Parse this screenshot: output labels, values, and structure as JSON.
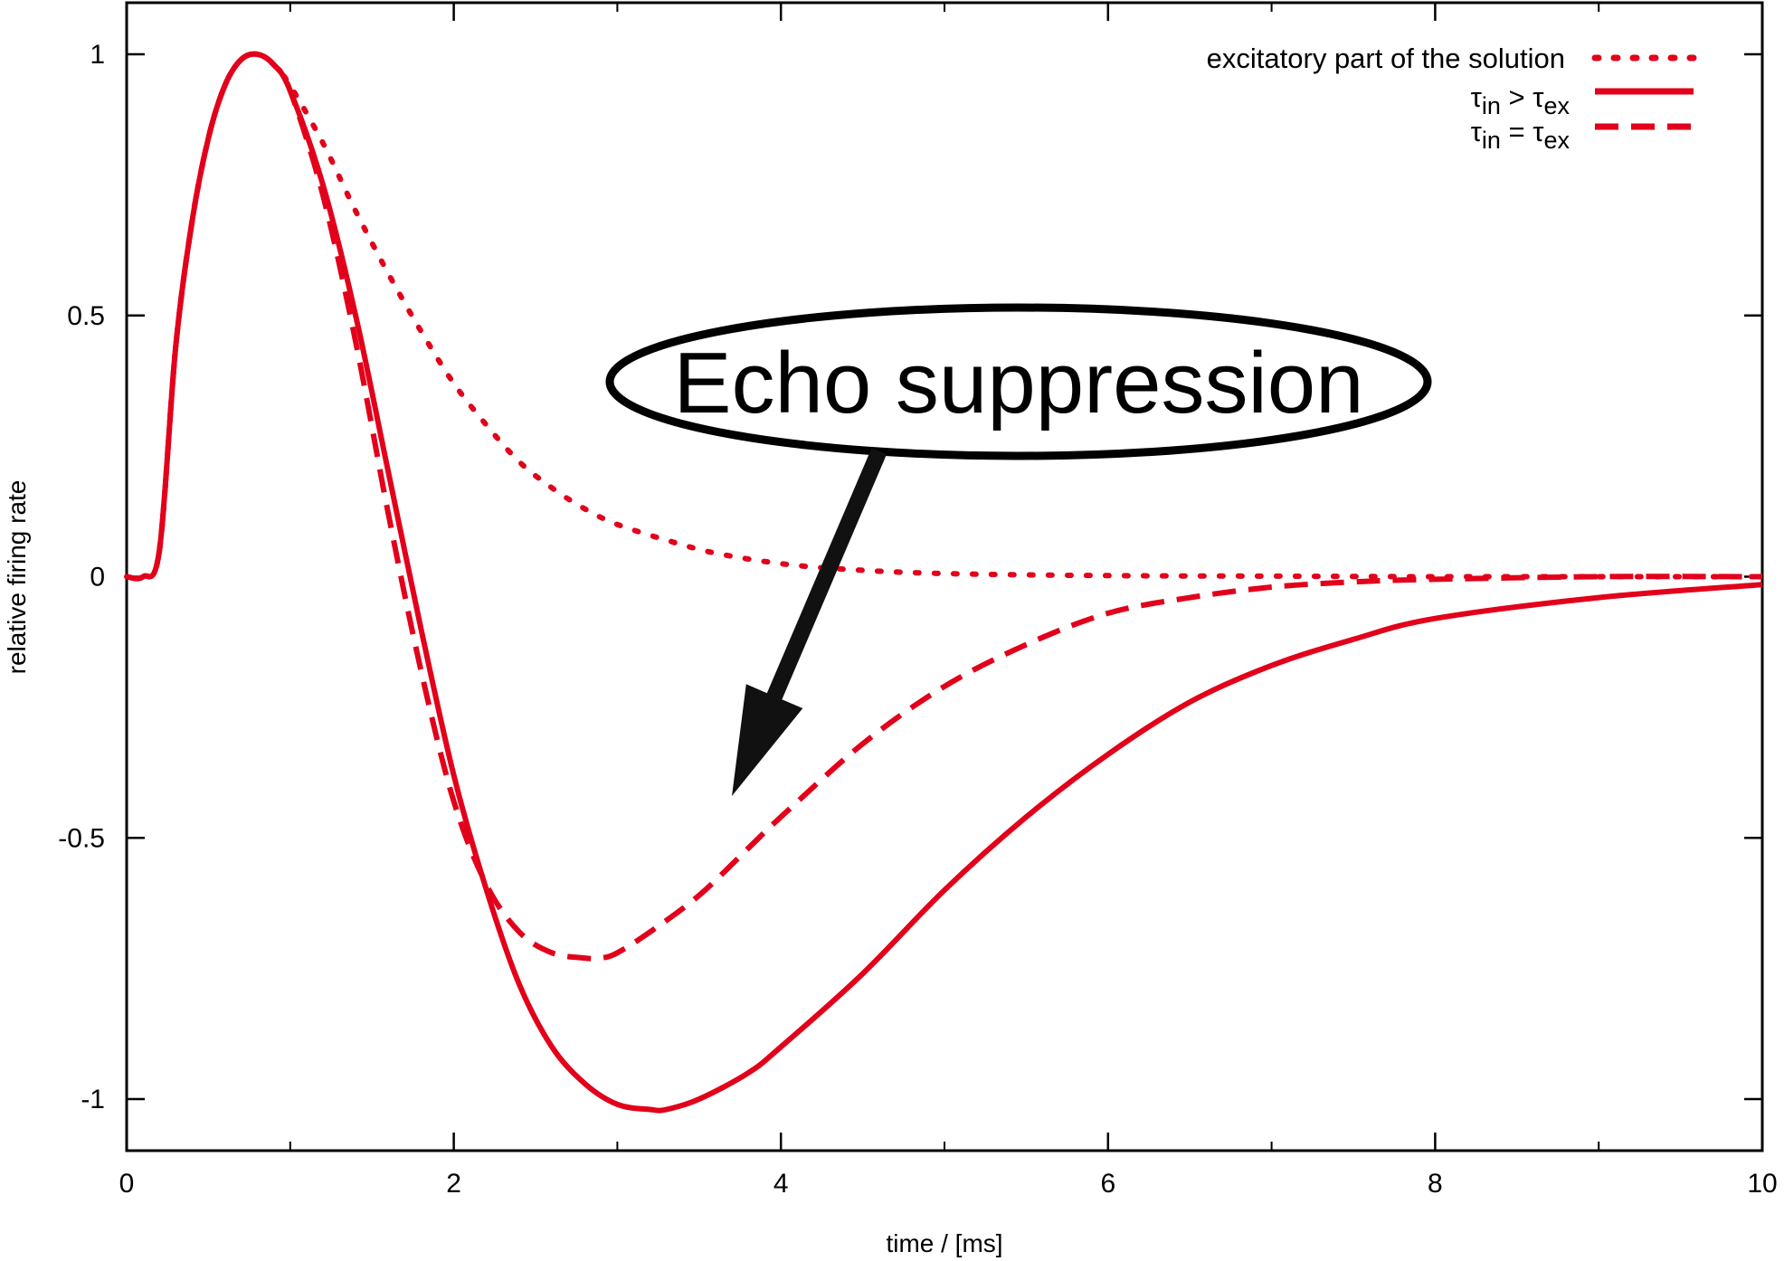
{
  "chart_data": {
    "type": "line",
    "title": "",
    "xlabel": "time / [ms]",
    "ylabel": "relative firing rate",
    "xlim": [
      0,
      10
    ],
    "ylim": [
      -1.1,
      1.0
    ],
    "xticks": [
      0,
      2,
      4,
      6,
      8,
      10
    ],
    "xtick_labels": [
      "0",
      "2",
      "4",
      "6",
      "8",
      "10"
    ],
    "yticks": [
      -1,
      -0.5,
      0,
      0.5,
      1
    ],
    "ytick_labels": [
      "-1",
      "-0.5",
      "0",
      "0.5",
      "1"
    ],
    "grid": false,
    "legend_position": "top-right",
    "color": "#e2001a",
    "series": [
      {
        "name": "excitatory part of the solution",
        "style": "dotted",
        "x": [
          0,
          0.1,
          0.2,
          0.3,
          0.4,
          0.5,
          0.6,
          0.7,
          0.8,
          0.9,
          1.0,
          1.2,
          1.4,
          1.6,
          1.8,
          2.0,
          2.2,
          2.4,
          2.6,
          2.8,
          3.0,
          3.3,
          3.6,
          4.0,
          4.4,
          5.0,
          6.0,
          7.0,
          8.0,
          9.0,
          10.0
        ],
        "y": [
          0,
          0,
          0.05,
          0.44,
          0.68,
          0.84,
          0.94,
          0.99,
          1.0,
          0.98,
          0.94,
          0.83,
          0.7,
          0.58,
          0.47,
          0.37,
          0.29,
          0.22,
          0.17,
          0.13,
          0.1,
          0.07,
          0.045,
          0.025,
          0.014,
          0.006,
          0.002,
          0.001,
          0.0,
          0.0,
          0.0
        ]
      },
      {
        "name": "τin > τex",
        "style": "solid",
        "x": [
          0,
          0.1,
          0.2,
          0.3,
          0.4,
          0.5,
          0.6,
          0.7,
          0.8,
          0.9,
          1.0,
          1.2,
          1.4,
          1.6,
          1.8,
          2.0,
          2.2,
          2.4,
          2.6,
          2.8,
          3.0,
          3.2,
          3.3,
          3.5,
          3.8,
          4.0,
          4.5,
          5.0,
          5.5,
          6.0,
          6.5,
          7.0,
          7.5,
          8.0,
          9.0,
          10.0
        ],
        "y": [
          0,
          0,
          0.05,
          0.44,
          0.68,
          0.84,
          0.94,
          0.99,
          1.0,
          0.98,
          0.93,
          0.75,
          0.5,
          0.2,
          -0.1,
          -0.38,
          -0.6,
          -0.78,
          -0.9,
          -0.97,
          -1.01,
          -1.02,
          -1.02,
          -1.0,
          -0.95,
          -0.9,
          -0.76,
          -0.6,
          -0.46,
          -0.34,
          -0.24,
          -0.17,
          -0.12,
          -0.08,
          -0.04,
          -0.015
        ]
      },
      {
        "name": "τin = τex",
        "style": "dashed",
        "x": [
          0,
          0.1,
          0.2,
          0.3,
          0.4,
          0.5,
          0.6,
          0.7,
          0.8,
          0.9,
          1.0,
          1.2,
          1.4,
          1.6,
          1.8,
          2.0,
          2.2,
          2.4,
          2.6,
          2.8,
          2.9,
          3.0,
          3.2,
          3.5,
          3.8,
          4.0,
          4.5,
          5.0,
          5.5,
          6.0,
          6.5,
          7.0,
          7.5,
          8.0,
          9.0,
          10.0
        ],
        "y": [
          0,
          0,
          0.05,
          0.44,
          0.68,
          0.84,
          0.94,
          0.99,
          1.0,
          0.98,
          0.93,
          0.73,
          0.45,
          0.12,
          -0.18,
          -0.43,
          -0.59,
          -0.68,
          -0.72,
          -0.73,
          -0.73,
          -0.72,
          -0.68,
          -0.61,
          -0.52,
          -0.46,
          -0.32,
          -0.21,
          -0.13,
          -0.07,
          -0.04,
          -0.02,
          -0.01,
          -0.005,
          0.0,
          0.0
        ]
      }
    ],
    "legend": {
      "entries": [
        {
          "label": "excitatory part of the solution"
        },
        {
          "label_main": "τ",
          "sub1": "in",
          "relation": " > τ",
          "sub2": "ex"
        },
        {
          "label_main": "τ",
          "sub1": "in",
          "relation": " = τ",
          "sub2": "ex"
        }
      ]
    },
    "annotation": {
      "text": "Echo suppression",
      "arrow_tail": [
        4.6,
        0.24
      ],
      "arrow_head": [
        3.7,
        -0.42
      ]
    }
  }
}
